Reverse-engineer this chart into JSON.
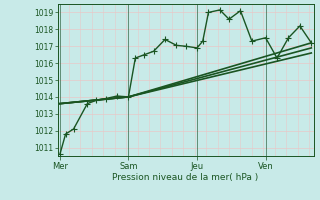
{
  "background_color": "#c8eae8",
  "grid_color_h": "#e8c8c8",
  "grid_color_v": "#e8c8c8",
  "day_line_color": "#336644",
  "line_color": "#1a5522",
  "ylim": [
    1010.5,
    1019.5
  ],
  "yticks": [
    1011,
    1012,
    1013,
    1014,
    1015,
    1016,
    1017,
    1018,
    1019
  ],
  "xlabel": "Pression niveau de la mer( hPa )",
  "day_labels": [
    "Mer",
    "Sam",
    "Jeu",
    "Ven"
  ],
  "day_positions": [
    0,
    3,
    6,
    9
  ],
  "xlim": [
    -0.1,
    11.1
  ],
  "series": [
    {
      "x": [
        0,
        0.25,
        0.6,
        1.2,
        1.6,
        2.0,
        2.5,
        3.0,
        3.3,
        3.7,
        4.1,
        4.6,
        5.1,
        5.5,
        6.0,
        6.25,
        6.5,
        7.0,
        7.4,
        7.9,
        8.4,
        9.0,
        9.5,
        10.0,
        10.5,
        11.0
      ],
      "y": [
        1010.6,
        1011.8,
        1012.1,
        1013.6,
        1013.8,
        1013.9,
        1014.05,
        1014.0,
        1016.3,
        1016.5,
        1016.7,
        1017.4,
        1017.05,
        1017.0,
        1016.9,
        1017.3,
        1019.0,
        1019.15,
        1018.6,
        1019.1,
        1017.3,
        1017.5,
        1016.3,
        1017.5,
        1018.2,
        1017.2
      ],
      "marker": "+",
      "markersize": 4,
      "linewidth": 1.0
    },
    {
      "x": [
        0,
        3.0,
        11.0
      ],
      "y": [
        1013.6,
        1014.0,
        1017.2
      ],
      "marker": null,
      "markersize": 0,
      "linewidth": 1.2
    },
    {
      "x": [
        0,
        3.0,
        11.0
      ],
      "y": [
        1013.6,
        1014.0,
        1016.9
      ],
      "marker": null,
      "markersize": 0,
      "linewidth": 1.2
    },
    {
      "x": [
        0,
        3.0,
        11.0
      ],
      "y": [
        1013.6,
        1014.0,
        1016.6
      ],
      "marker": null,
      "markersize": 0,
      "linewidth": 1.2
    }
  ]
}
